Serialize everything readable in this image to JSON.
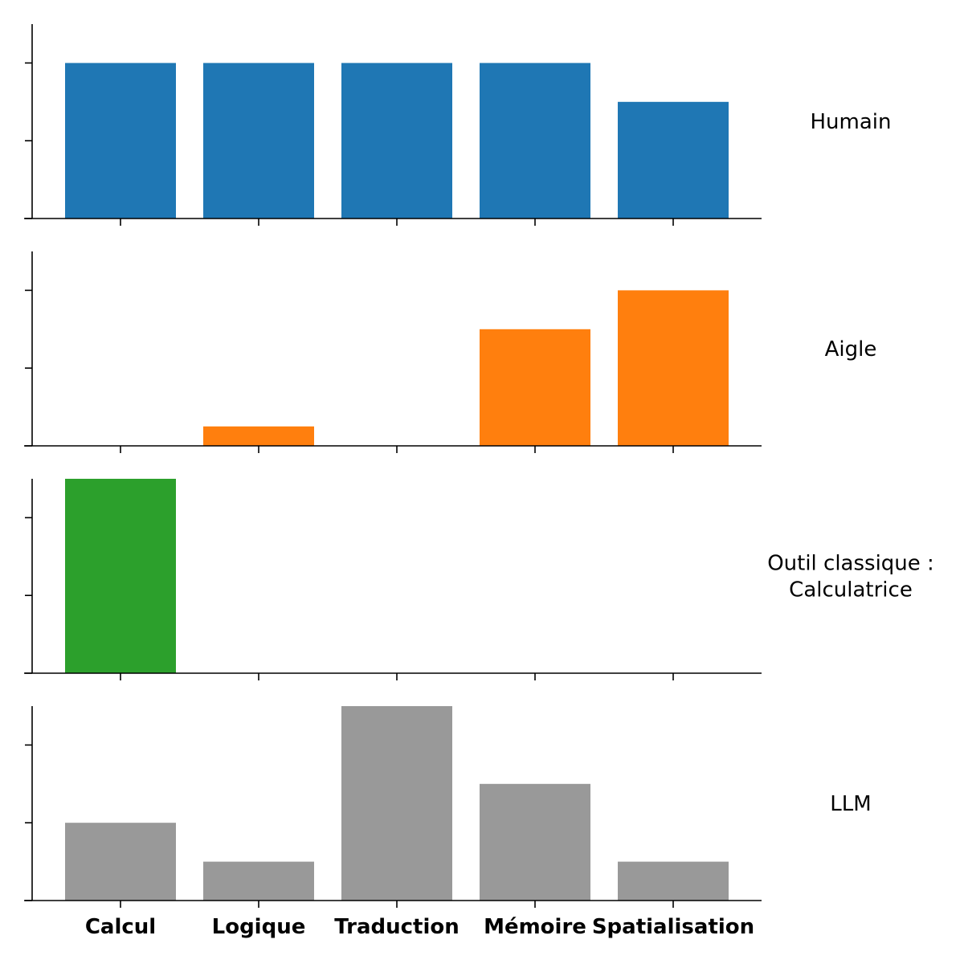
{
  "chart_data": {
    "type": "bar",
    "categories": [
      "Calcul",
      "Logique",
      "Traduction",
      "Mémoire",
      "Spatialisation"
    ],
    "ylim": [
      0,
      2.5
    ],
    "yticks": [
      0,
      1,
      2
    ],
    "grid": false,
    "legend": "none",
    "panels": [
      {
        "name": "Humain",
        "label_lines": [
          "Humain"
        ],
        "color": "#1f77b4",
        "values": [
          2,
          2,
          2,
          2,
          1.5
        ]
      },
      {
        "name": "Aigle",
        "label_lines": [
          "Aigle"
        ],
        "color": "#ff7f0e",
        "values": [
          0,
          0.25,
          0,
          1.5,
          2
        ]
      },
      {
        "name": "Outil classique : Calculatrice",
        "label_lines": [
          "Outil classique :",
          "Calculatrice"
        ],
        "color": "#2ca02c",
        "values": [
          2.5,
          0,
          0,
          0,
          0
        ]
      },
      {
        "name": "LLM",
        "label_lines": [
          "LLM"
        ],
        "color": "#999999",
        "values": [
          1,
          0.5,
          2.5,
          1.5,
          0.5
        ]
      }
    ]
  }
}
